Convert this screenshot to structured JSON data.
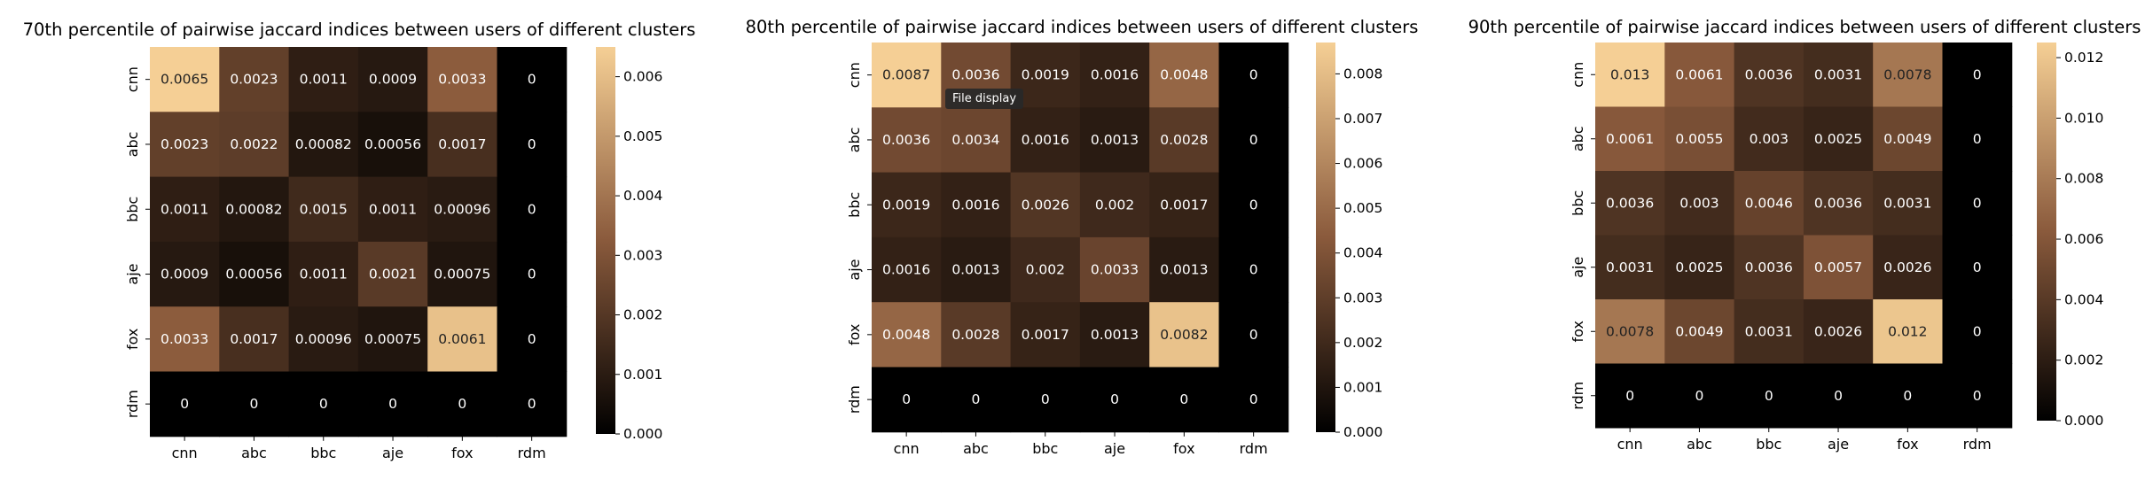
{
  "chart_data": [
    {
      "type": "heatmap",
      "title": "70th percentile of pairwise jaccard indices between users of different clusters",
      "x_categories": [
        "cnn",
        "abc",
        "bbc",
        "aje",
        "fox",
        "rdm"
      ],
      "y_categories": [
        "cnn",
        "abc",
        "bbc",
        "aje",
        "fox",
        "rdm"
      ],
      "values": [
        [
          0.0065,
          0.0023,
          0.0011,
          0.0009,
          0.0033,
          0
        ],
        [
          0.0023,
          0.0022,
          0.00082,
          0.00056,
          0.0017,
          0
        ],
        [
          0.0011,
          0.00082,
          0.0015,
          0.0011,
          0.00096,
          0
        ],
        [
          0.0009,
          0.00056,
          0.0011,
          0.0021,
          0.00075,
          0
        ],
        [
          0.0033,
          0.0017,
          0.00096,
          0.00075,
          0.0061,
          0
        ],
        [
          0,
          0,
          0,
          0,
          0,
          0
        ]
      ],
      "cell_labels": [
        [
          "0.0065",
          "0.0023",
          "0.0011",
          "0.0009",
          "0.0033",
          "0"
        ],
        [
          "0.0023",
          "0.0022",
          "0.00082",
          "0.00056",
          "0.0017",
          "0"
        ],
        [
          "0.0011",
          "0.00082",
          "0.0015",
          "0.0011",
          "0.00096",
          "0"
        ],
        [
          "0.0009",
          "0.00056",
          "0.0011",
          "0.0021",
          "0.00075",
          "0"
        ],
        [
          "0.0033",
          "0.0017",
          "0.00096",
          "0.00075",
          "0.0061",
          "0"
        ],
        [
          "0",
          "0",
          "0",
          "0",
          "0",
          "0"
        ]
      ],
      "colorbar": {
        "range": [
          0,
          0.0065
        ],
        "ticks": [
          0,
          0.001,
          0.002,
          0.003,
          0.004,
          0.005,
          0.006
        ],
        "tick_labels": [
          "0.000",
          "0.001",
          "0.002",
          "0.003",
          "0.004",
          "0.005",
          "0.006"
        ]
      }
    },
    {
      "type": "heatmap",
      "title": "80th percentile of pairwise jaccard indices between users of different clusters",
      "x_categories": [
        "cnn",
        "abc",
        "bbc",
        "aje",
        "fox",
        "rdm"
      ],
      "y_categories": [
        "cnn",
        "abc",
        "bbc",
        "aje",
        "fox",
        "rdm"
      ],
      "values": [
        [
          0.0087,
          0.0036,
          0.0019,
          0.0016,
          0.0048,
          0
        ],
        [
          0.0036,
          0.0034,
          0.0016,
          0.0013,
          0.0028,
          0
        ],
        [
          0.0019,
          0.0016,
          0.0026,
          0.002,
          0.0017,
          0
        ],
        [
          0.0016,
          0.0013,
          0.002,
          0.0033,
          0.0013,
          0
        ],
        [
          0.0048,
          0.0028,
          0.0017,
          0.0013,
          0.0082,
          0
        ],
        [
          0,
          0,
          0,
          0,
          0,
          0
        ]
      ],
      "cell_labels": [
        [
          "0.0087",
          "0.0036",
          "0.0019",
          "0.0016",
          "0.0048",
          "0"
        ],
        [
          "0.0036",
          "0.0034",
          "0.0016",
          "0.0013",
          "0.0028",
          "0"
        ],
        [
          "0.0019",
          "0.0016",
          "0.0026",
          "0.002",
          "0.0017",
          "0"
        ],
        [
          "0.0016",
          "0.0013",
          "0.002",
          "0.0033",
          "0.0013",
          "0"
        ],
        [
          "0.0048",
          "0.0028",
          "0.0017",
          "0.0013",
          "0.0082",
          "0"
        ],
        [
          "0",
          "0",
          "0",
          "0",
          "0",
          "0"
        ]
      ],
      "colorbar": {
        "range": [
          0,
          0.0087
        ],
        "ticks": [
          0,
          0.001,
          0.002,
          0.003,
          0.004,
          0.005,
          0.006,
          0.007,
          0.008
        ],
        "tick_labels": [
          "0.000",
          "0.001",
          "0.002",
          "0.003",
          "0.004",
          "0.005",
          "0.006",
          "0.007",
          "0.008"
        ]
      }
    },
    {
      "type": "heatmap",
      "title": "90th percentile of pairwise jaccard indices between users of different clusters",
      "x_categories": [
        "cnn",
        "abc",
        "bbc",
        "aje",
        "fox",
        "rdm"
      ],
      "y_categories": [
        "cnn",
        "abc",
        "bbc",
        "aje",
        "fox",
        "rdm"
      ],
      "values": [
        [
          0.013,
          0.0061,
          0.0036,
          0.0031,
          0.0078,
          0
        ],
        [
          0.0061,
          0.0055,
          0.003,
          0.0025,
          0.0049,
          0
        ],
        [
          0.0036,
          0.003,
          0.0046,
          0.0036,
          0.0031,
          0
        ],
        [
          0.0031,
          0.0025,
          0.0036,
          0.0057,
          0.0026,
          0
        ],
        [
          0.0078,
          0.0049,
          0.0031,
          0.0026,
          0.012,
          0
        ],
        [
          0,
          0,
          0,
          0,
          0,
          0
        ]
      ],
      "cell_labels": [
        [
          "0.013",
          "0.0061",
          "0.0036",
          "0.0031",
          "0.0078",
          "0"
        ],
        [
          "0.0061",
          "0.0055",
          "0.003",
          "0.0025",
          "0.0049",
          "0"
        ],
        [
          "0.0036",
          "0.003",
          "0.0046",
          "0.0036",
          "0.0031",
          "0"
        ],
        [
          "0.0031",
          "0.0025",
          "0.0036",
          "0.0057",
          "0.0026",
          "0"
        ],
        [
          "0.0078",
          "0.0049",
          "0.0031",
          "0.0026",
          "0.012",
          "0"
        ],
        [
          "0",
          "0",
          "0",
          "0",
          "0",
          "0"
        ]
      ],
      "colorbar": {
        "range": [
          0,
          0.0125
        ],
        "ticks": [
          0,
          0.002,
          0.004,
          0.006,
          0.008,
          0.01,
          0.012
        ],
        "tick_labels": [
          "0.000",
          "0.002",
          "0.004",
          "0.006",
          "0.008",
          "0.010",
          "0.012"
        ]
      }
    }
  ],
  "colormap": {
    "low": "#000000",
    "mid": "#8a5a3c",
    "high": "#f5cf95"
  },
  "tooltip": {
    "text": "File display"
  }
}
